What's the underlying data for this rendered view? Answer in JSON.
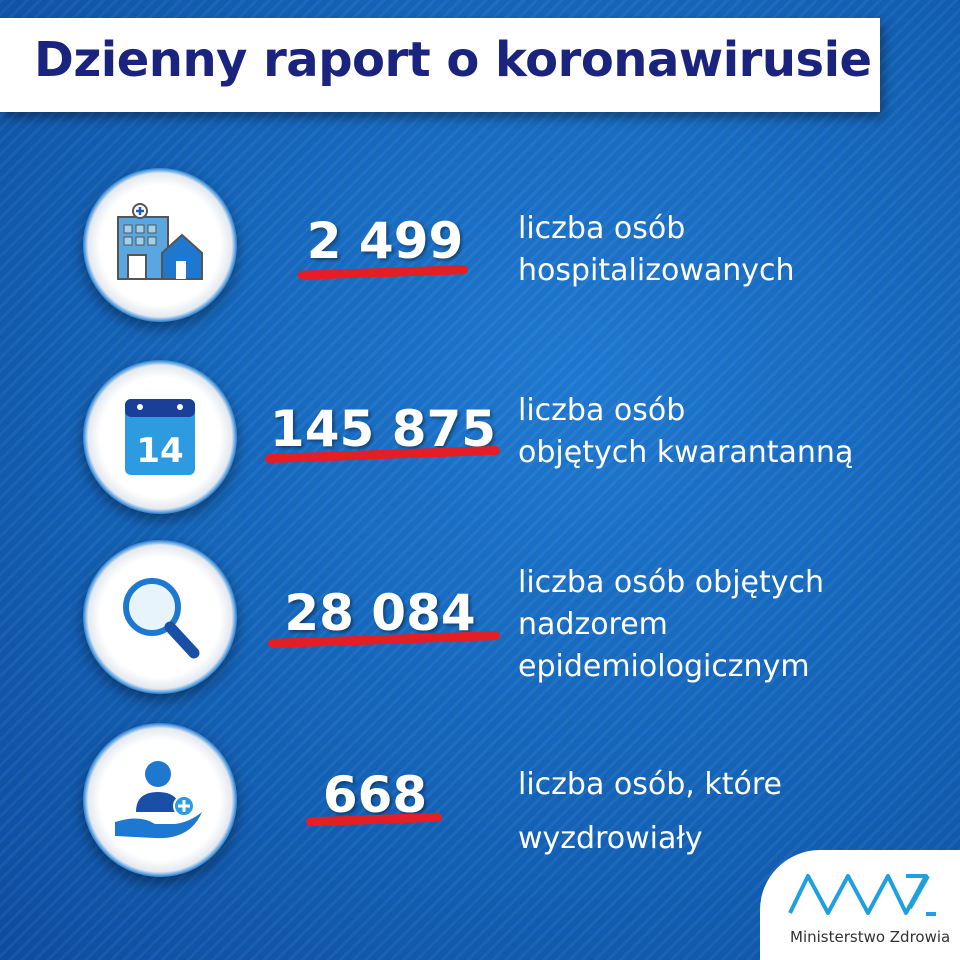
{
  "title": "Dzienny raport o koronawirusie",
  "items": [
    {
      "icon": "hospital-icon",
      "value": "2 499",
      "label_lines": [
        "liczba osób",
        "hospitalizowanych"
      ]
    },
    {
      "icon": "calendar-14-icon",
      "value": "145 875",
      "label_lines": [
        "liczba osób",
        "objętych kwarantanną"
      ],
      "calendar_day": "14"
    },
    {
      "icon": "magnifier-icon",
      "value": "28 084",
      "label_lines": [
        "liczba osób objętych",
        "nadzorem",
        "epidemiologicznym"
      ]
    },
    {
      "icon": "hand-person-plus-icon",
      "value": "668",
      "label_lines": [
        "liczba osób, które",
        "wyzdrowiały"
      ]
    }
  ],
  "logo": {
    "text": "Ministerstwo Zdrowia",
    "mark": "MZ"
  },
  "colors": {
    "title": "#1a237e",
    "underline": "#e31e24",
    "background": "#1466bb",
    "logo": "#1ea0e0"
  }
}
